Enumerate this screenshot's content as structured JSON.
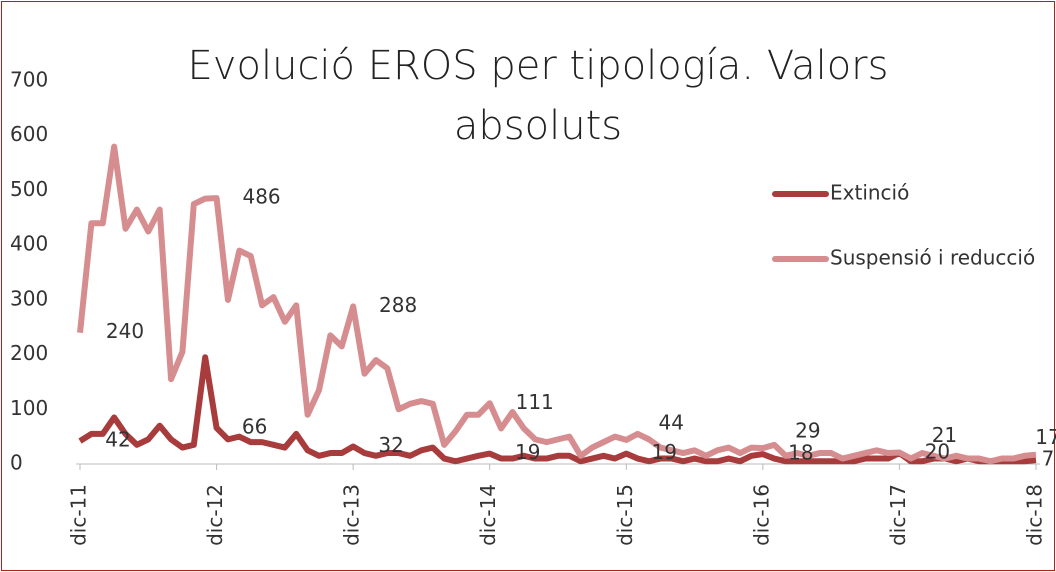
{
  "chart_data": {
    "type": "line",
    "title": "Evolució EROS per tipología. Valors absoluts",
    "categories": [
      "dic-11",
      null,
      null,
      null,
      null,
      null,
      null,
      null,
      null,
      null,
      null,
      null,
      "dic-12",
      null,
      null,
      null,
      null,
      null,
      null,
      null,
      null,
      null,
      null,
      null,
      "dic-13",
      null,
      null,
      null,
      null,
      null,
      null,
      null,
      null,
      null,
      null,
      null,
      "dic-14",
      null,
      null,
      null,
      null,
      null,
      null,
      null,
      null,
      null,
      null,
      null,
      "dic-15",
      null,
      null,
      null,
      null,
      null,
      null,
      null,
      null,
      null,
      null,
      null,
      "dic-16",
      null,
      null,
      null,
      null,
      null,
      null,
      null,
      null,
      null,
      null,
      null,
      "dic-17",
      null,
      null,
      null,
      null,
      null,
      null,
      null,
      null,
      null,
      null,
      null,
      "dic-18"
    ],
    "ylim": [
      0,
      700
    ],
    "yticks": [
      0,
      100,
      200,
      300,
      400,
      500,
      600,
      700
    ],
    "legend": "right",
    "series": [
      {
        "name": "Extinció",
        "color": "#a83c3c",
        "values": [
          42,
          55,
          55,
          85,
          55,
          35,
          45,
          70,
          45,
          30,
          35,
          195,
          66,
          45,
          50,
          40,
          40,
          35,
          30,
          55,
          25,
          15,
          20,
          20,
          32,
          20,
          15,
          20,
          20,
          15,
          25,
          30,
          10,
          5,
          10,
          15,
          19,
          10,
          10,
          15,
          10,
          10,
          15,
          15,
          5,
          10,
          15,
          10,
          19,
          10,
          5,
          10,
          10,
          5,
          10,
          5,
          5,
          10,
          5,
          15,
          18,
          10,
          5,
          5,
          5,
          5,
          5,
          5,
          5,
          10,
          10,
          10,
          20,
          5,
          5,
          10,
          10,
          5,
          10,
          5,
          5,
          5,
          5,
          5,
          7
        ],
        "value_labels": [
          "42",
          null,
          null,
          null,
          null,
          null,
          null,
          null,
          null,
          null,
          null,
          null,
          "66",
          null,
          null,
          null,
          null,
          null,
          null,
          null,
          null,
          null,
          null,
          null,
          "32",
          null,
          null,
          null,
          null,
          null,
          null,
          null,
          null,
          null,
          null,
          null,
          "19",
          null,
          null,
          null,
          null,
          null,
          null,
          null,
          null,
          null,
          null,
          null,
          "19",
          null,
          null,
          null,
          null,
          null,
          null,
          null,
          null,
          null,
          null,
          null,
          "18",
          null,
          null,
          null,
          null,
          null,
          null,
          null,
          null,
          null,
          null,
          null,
          "20",
          null,
          null,
          null,
          null,
          null,
          null,
          null,
          null,
          null,
          null,
          null,
          "7"
        ]
      },
      {
        "name": "Suspensió i reducció",
        "color": "#d68d8f",
        "values": [
          240,
          440,
          440,
          580,
          430,
          465,
          425,
          465,
          155,
          205,
          475,
          485,
          486,
          300,
          390,
          380,
          290,
          305,
          260,
          290,
          90,
          135,
          235,
          215,
          288,
          165,
          190,
          175,
          100,
          110,
          115,
          110,
          35,
          60,
          90,
          90,
          111,
          65,
          95,
          65,
          45,
          40,
          45,
          50,
          15,
          30,
          40,
          50,
          44,
          55,
          45,
          30,
          25,
          20,
          25,
          15,
          25,
          30,
          20,
          30,
          29,
          35,
          15,
          20,
          15,
          20,
          20,
          10,
          15,
          20,
          25,
          20,
          21,
          10,
          20,
          15,
          10,
          15,
          10,
          10,
          5,
          10,
          10,
          15,
          17
        ],
        "value_labels": [
          "240",
          null,
          null,
          null,
          null,
          null,
          null,
          null,
          null,
          null,
          null,
          null,
          "486",
          null,
          null,
          null,
          null,
          null,
          null,
          null,
          null,
          null,
          null,
          null,
          "288",
          null,
          null,
          null,
          null,
          null,
          null,
          null,
          null,
          null,
          null,
          null,
          "111",
          null,
          null,
          null,
          null,
          null,
          null,
          null,
          null,
          null,
          null,
          null,
          "44",
          null,
          null,
          null,
          null,
          null,
          null,
          null,
          null,
          null,
          null,
          null,
          "29",
          null,
          null,
          null,
          null,
          null,
          null,
          null,
          null,
          null,
          null,
          null,
          "21",
          null,
          null,
          null,
          null,
          null,
          null,
          null,
          null,
          null,
          null,
          null,
          "17"
        ]
      }
    ]
  }
}
